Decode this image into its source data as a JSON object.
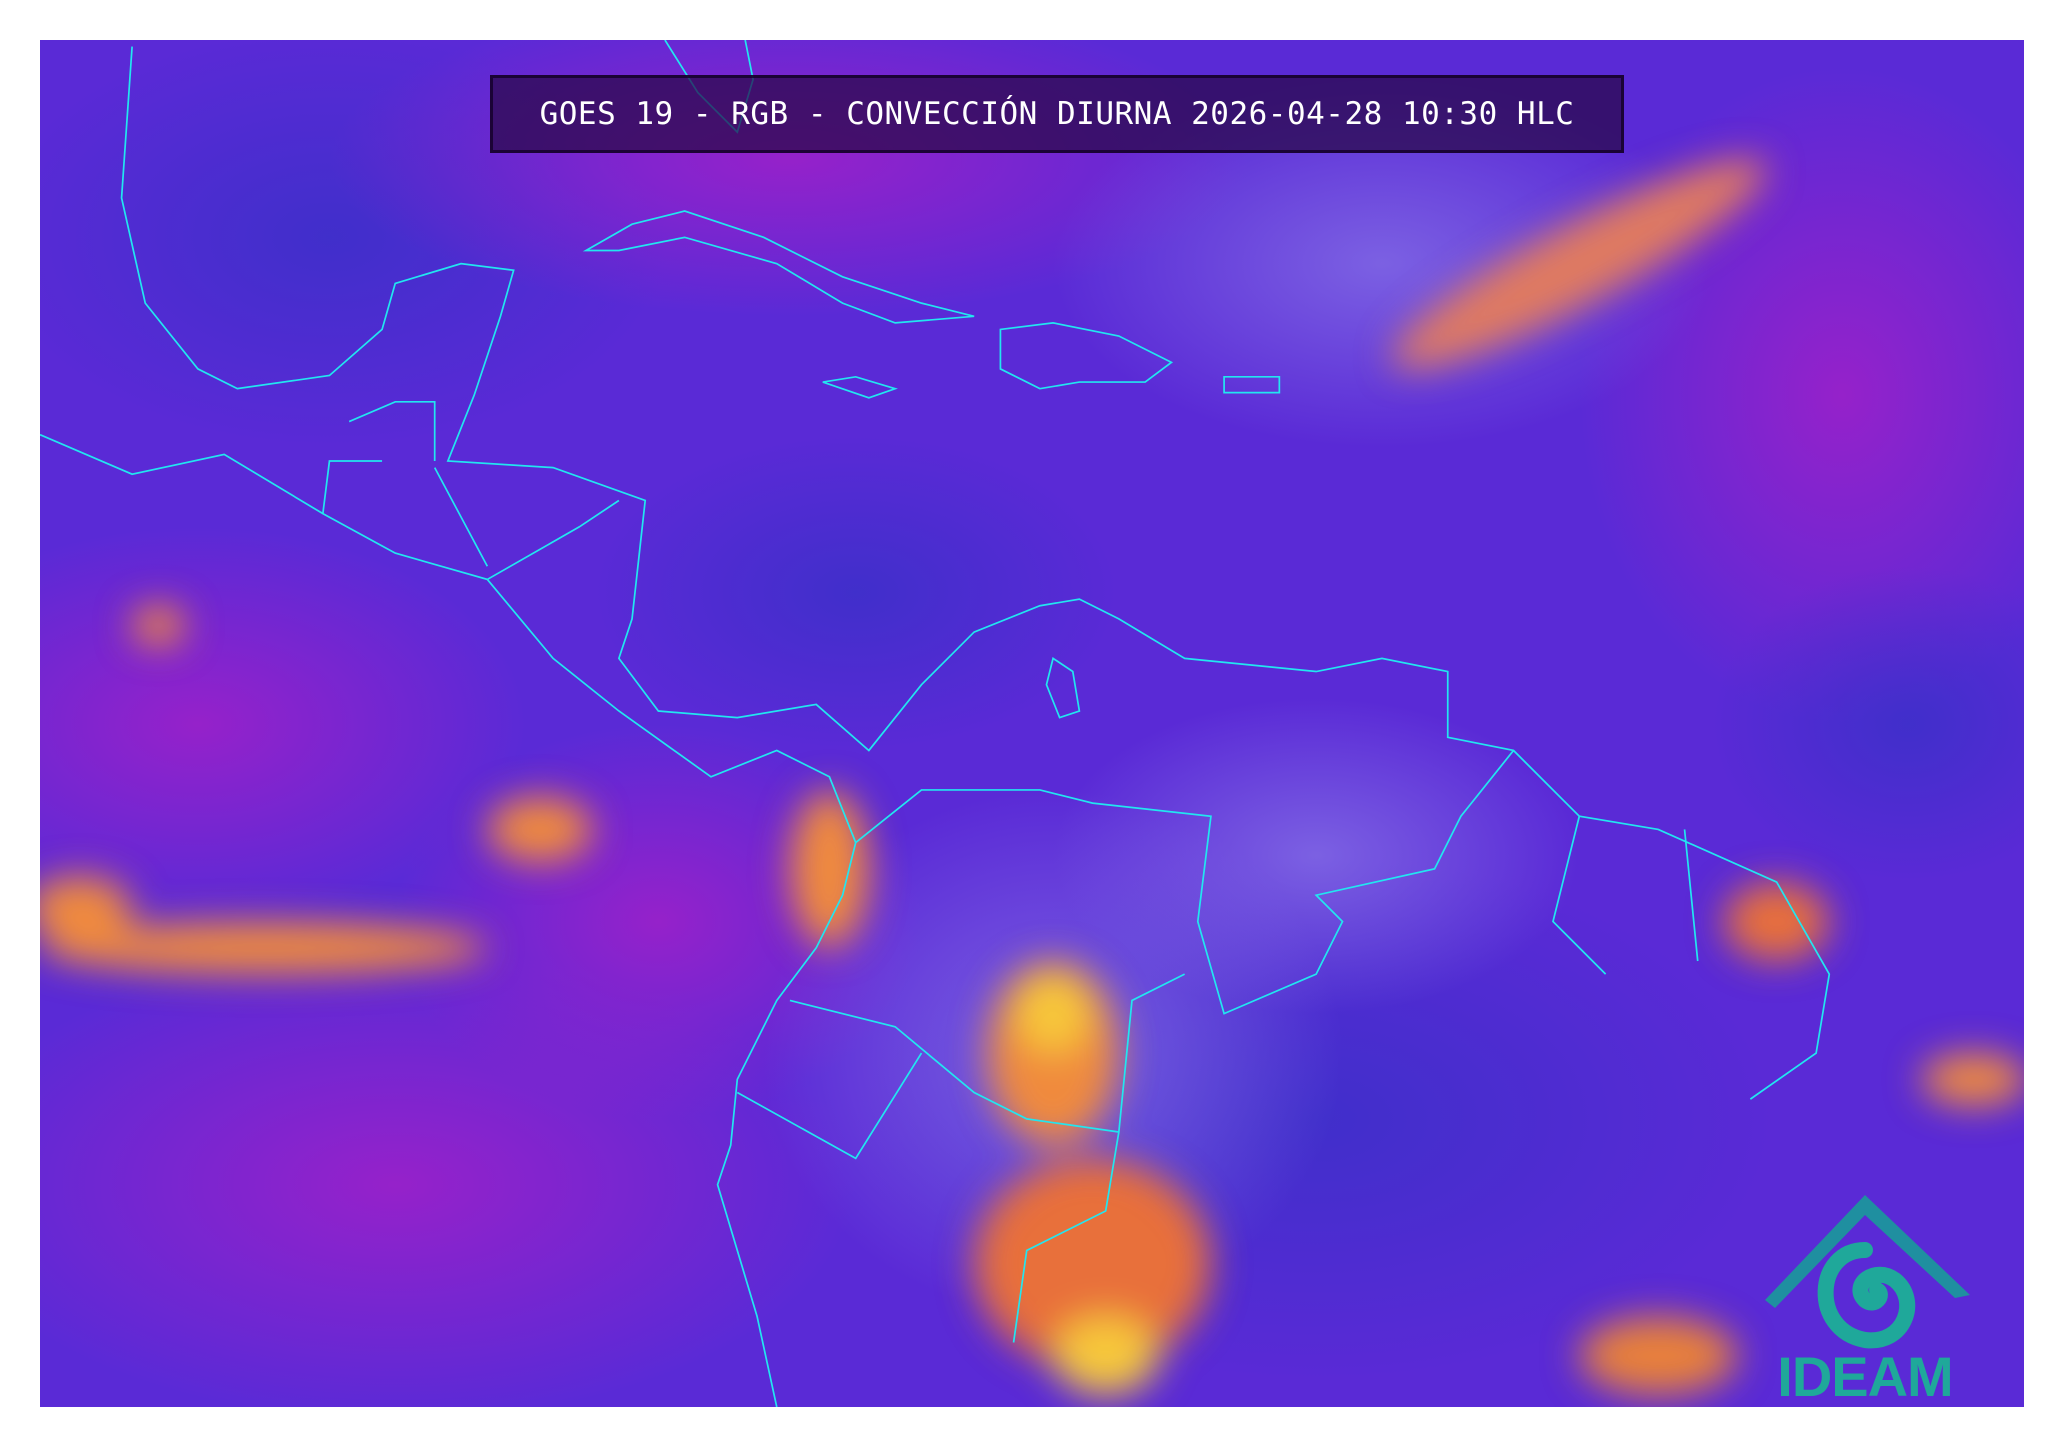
{
  "title": "GOES 19 - RGB - CONVECCIÓN DIURNA 2026-04-28 10:30 HLC",
  "logo": {
    "text": "IDEAM"
  },
  "colors": {
    "ocean_base": "#5a2ad6",
    "magenta_zones": "#9a22c8",
    "coastline": "#22e6f0",
    "convection_orange": "#f08a3c",
    "convection_yellow": "#f7c83a",
    "logo_teal": "#1fa89a",
    "title_background": "#28084a"
  }
}
